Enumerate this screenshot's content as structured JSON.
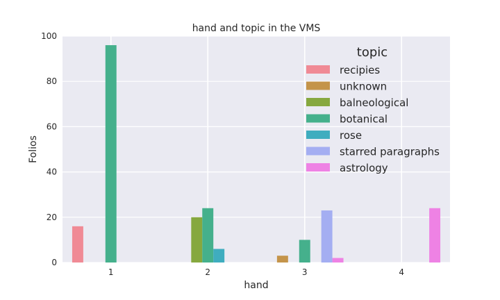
{
  "chart_data": {
    "type": "bar",
    "title": "hand and topic in the VMS",
    "xlabel": "hand",
    "ylabel": "Folios",
    "categories": [
      "1",
      "2",
      "3",
      "4"
    ],
    "ylim": [
      0,
      100
    ],
    "yticks": [
      "0",
      "20",
      "40",
      "60",
      "80",
      "100"
    ],
    "grid": true,
    "legend": {
      "title": "topic",
      "placement": "top-right"
    },
    "series": [
      {
        "name": "recipies",
        "color": "#f08a95",
        "values": [
          16,
          0,
          0,
          0
        ]
      },
      {
        "name": "unknown",
        "color": "#c4944a",
        "values": [
          0,
          0,
          3,
          0
        ]
      },
      {
        "name": "balneological",
        "color": "#86a83f",
        "values": [
          0,
          20,
          0,
          0
        ]
      },
      {
        "name": "botanical",
        "color": "#45b08c",
        "values": [
          96,
          24,
          10,
          0
        ]
      },
      {
        "name": "rose",
        "color": "#3fadbf",
        "values": [
          0,
          6,
          0,
          0
        ]
      },
      {
        "name": "starred paragraphs",
        "color": "#a4aef2",
        "values": [
          0,
          0,
          23,
          0
        ]
      },
      {
        "name": "astrology",
        "color": "#ee82e4",
        "values": [
          0,
          0,
          2,
          24
        ]
      }
    ]
  }
}
